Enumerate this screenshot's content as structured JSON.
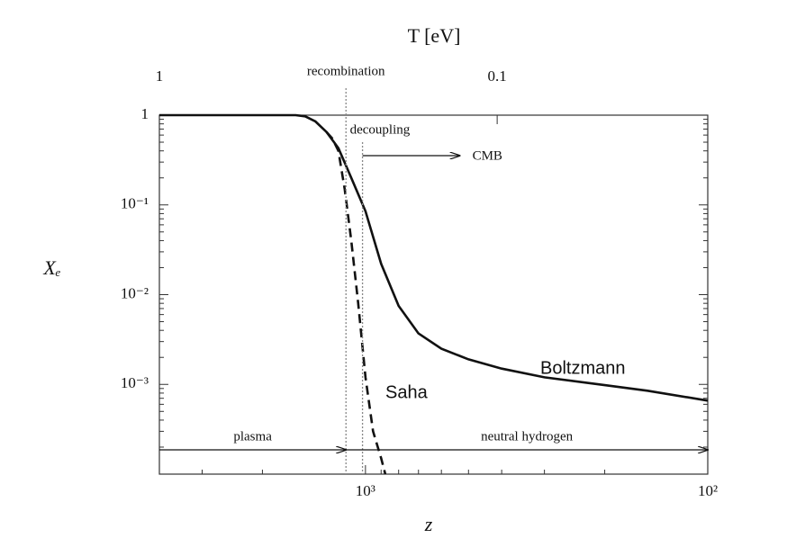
{
  "chart_data": {
    "type": "line",
    "xlabel": "z",
    "ylabel": "Xₑ",
    "x2label": "T [eV]",
    "xscale": "log",
    "yscale": "log",
    "xlim": [
      4000,
      100
    ],
    "ylim": [
      0.0001,
      1
    ],
    "x2lim": [
      1,
      0.0238
    ],
    "xticks": [
      {
        "value": 1000,
        "label": "10³"
      },
      {
        "value": 100,
        "label": "10²"
      }
    ],
    "xminorticks": [
      3000,
      2000,
      900,
      800,
      700,
      600,
      500,
      400,
      300,
      200
    ],
    "x2ticks": [
      1,
      0.1
    ],
    "yticks": [
      {
        "value": 0.001,
        "label": "10⁻³"
      },
      {
        "value": 0.01,
        "label": "10⁻²"
      },
      {
        "value": 0.1,
        "label": "10⁻¹"
      },
      1
    ],
    "yminorticks": [
      0.0002,
      0.0003,
      0.0004,
      0.0005,
      0.0006,
      0.0007,
      0.0008,
      0.0009,
      0.002,
      0.003,
      0.004,
      0.005,
      0.006,
      0.007,
      0.008,
      0.009,
      0.02,
      0.03,
      0.04,
      0.05,
      0.06,
      0.07,
      0.08,
      0.09,
      0.2,
      0.3,
      0.4,
      0.5,
      0.6,
      0.7,
      0.8,
      0.9
    ],
    "series": [
      {
        "name": "Boltzmann",
        "color": "#111111",
        "dashed": false,
        "x": [
          4000,
          1600,
          1500,
          1400,
          1300,
          1200,
          1100,
          1000,
          900,
          800,
          700,
          600,
          500,
          400,
          300,
          200,
          150,
          100
        ],
        "values": [
          1,
          1,
          0.97,
          0.85,
          0.65,
          0.43,
          0.2,
          0.085,
          0.022,
          0.0075,
          0.0037,
          0.0025,
          0.0019,
          0.0015,
          0.0012,
          0.00098,
          0.00085,
          0.00066
        ]
      },
      {
        "name": "Saha",
        "color": "#111111",
        "dashed": true,
        "x": [
          1300,
          1250,
          1200,
          1150,
          1100,
          1050,
          1000,
          950,
          900,
          875
        ],
        "values": [
          0.65,
          0.55,
          0.4,
          0.15,
          0.04,
          0.008,
          0.0012,
          0.0003,
          0.00015,
          0.0001
        ]
      }
    ],
    "annotations": {
      "recombination": {
        "text": "recombination",
        "z": 1140
      },
      "decoupling": {
        "text": "decoupling",
        "z": 1020
      },
      "cmb": {
        "text": "CMB"
      },
      "plasma": {
        "text": "plasma"
      },
      "neutral": {
        "text": "neutral hydrogen"
      }
    }
  }
}
